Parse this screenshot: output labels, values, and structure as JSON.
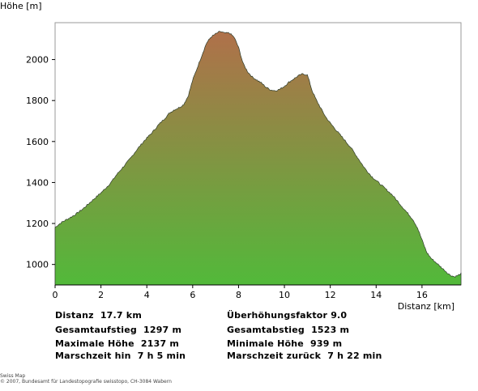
{
  "chart_data": {
    "type": "area",
    "ylabel": "Höhe [m]",
    "xlabel": "Distanz [km]",
    "xlim": [
      0,
      17.7
    ],
    "ylim": [
      900,
      2180
    ],
    "x_ticks": [
      0,
      2,
      4,
      6,
      8,
      10,
      12,
      14,
      16
    ],
    "y_ticks": [
      1000,
      1200,
      1400,
      1600,
      1800,
      2000
    ],
    "grid": false,
    "fill_colors": {
      "top": "#b0704a",
      "bottom": "#52b93a"
    },
    "series": [
      {
        "x": [
          0.0,
          0.15,
          0.35,
          0.6,
          0.9,
          1.2,
          1.5,
          1.8,
          2.1,
          2.4,
          2.7,
          3.0,
          3.3,
          3.6,
          3.9,
          4.2,
          4.5,
          4.8,
          5.0,
          5.2,
          5.4,
          5.6,
          5.8,
          6.0,
          6.2,
          6.4,
          6.6,
          6.8,
          7.0,
          7.2,
          7.4,
          7.6,
          7.8,
          8.0,
          8.2,
          8.4,
          8.6,
          8.8,
          9.0,
          9.2,
          9.4,
          9.6,
          9.8,
          10.0,
          10.2,
          10.4,
          10.6,
          10.8,
          11.0,
          11.1,
          11.2,
          11.4,
          11.6,
          11.8,
          12.0,
          12.3,
          12.6,
          12.9,
          13.2,
          13.5,
          13.8,
          14.1,
          14.4,
          14.7,
          15.0,
          15.3,
          15.6,
          15.8,
          16.0,
          16.2,
          16.4,
          16.6,
          16.8,
          17.0,
          17.2,
          17.4,
          17.55,
          17.7
        ],
        "y": [
          1180,
          1195,
          1210,
          1225,
          1245,
          1270,
          1300,
          1330,
          1360,
          1395,
          1440,
          1480,
          1520,
          1565,
          1605,
          1640,
          1680,
          1715,
          1740,
          1755,
          1765,
          1780,
          1820,
          1900,
          1960,
          2020,
          2080,
          2110,
          2125,
          2137,
          2128,
          2130,
          2110,
          2060,
          1980,
          1940,
          1915,
          1900,
          1885,
          1865,
          1852,
          1848,
          1855,
          1870,
          1890,
          1905,
          1920,
          1930,
          1925,
          1890,
          1850,
          1800,
          1760,
          1720,
          1690,
          1650,
          1610,
          1570,
          1520,
          1470,
          1430,
          1400,
          1370,
          1340,
          1300,
          1260,
          1220,
          1180,
          1120,
          1060,
          1030,
          1010,
          990,
          970,
          950,
          940,
          945,
          955
        ]
      }
    ]
  },
  "stats": {
    "left": [
      {
        "label": "Distanz",
        "value": "17.7 km"
      },
      {
        "label": "Gesamtaufstieg",
        "value": "1297 m"
      },
      {
        "label": "Maximale Höhe",
        "value": "2137 m"
      },
      {
        "label": "Marschzeit hin",
        "value": "7 h 5 min"
      }
    ],
    "right": [
      {
        "label": "Überhöhungsfaktor",
        "value": "9.0"
      },
      {
        "label": "Gesamtabstieg",
        "value": "1523 m"
      },
      {
        "label": "Minimale Höhe",
        "value": "939 m"
      },
      {
        "label": "Marschzeit zurück",
        "value": "7 h 22 min"
      }
    ]
  },
  "copyright": {
    "line1": "Swiss Map",
    "line2": "© 2007, Bundesamt für Landestopografie swisstopo, CH-3084 Wabern"
  }
}
